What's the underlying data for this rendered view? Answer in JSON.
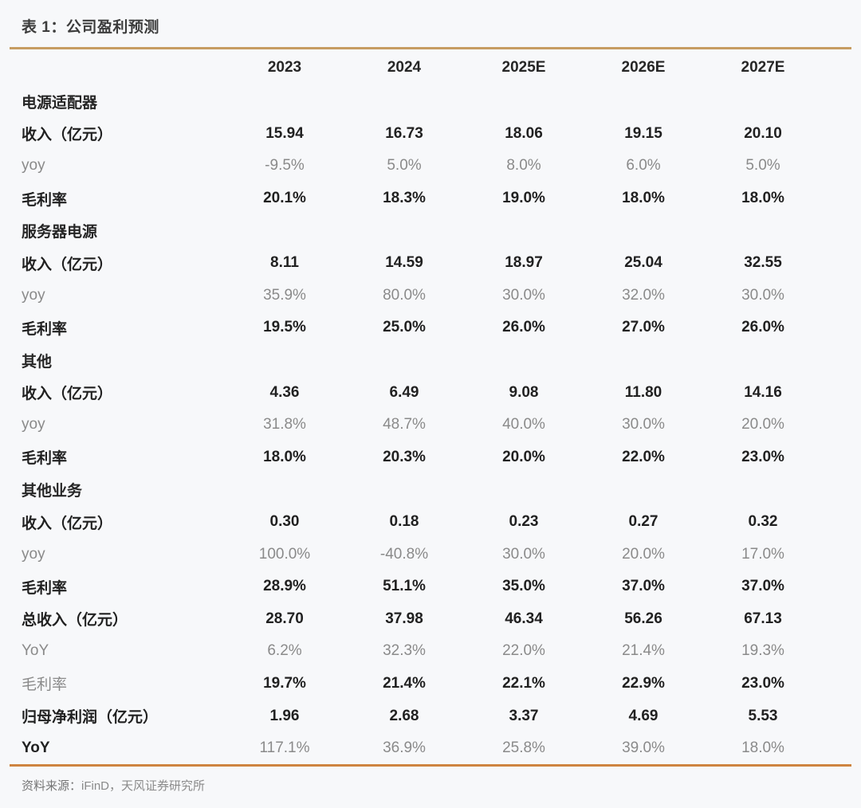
{
  "page": {
    "background": "#F7F8FA",
    "accent_top_rule": "#C69C62",
    "accent_bottom_rule": "#CE8440"
  },
  "table": {
    "title": "表 1：公司盈利预测",
    "columns": [
      "",
      "2023",
      "2024",
      "2025E",
      "2026E",
      "2027E"
    ],
    "rows": [
      {
        "label": "电源适配器",
        "style": "section",
        "values": [
          "",
          "",
          "",
          "",
          ""
        ]
      },
      {
        "label": "收入（亿元）",
        "style": "bold",
        "values": [
          "15.94",
          "16.73",
          "18.06",
          "19.15",
          "20.10"
        ]
      },
      {
        "label": "yoy",
        "style": "gray",
        "values": [
          "-9.5%",
          "5.0%",
          "8.0%",
          "6.0%",
          "5.0%"
        ]
      },
      {
        "label": "毛利率",
        "style": "bold",
        "values": [
          "20.1%",
          "18.3%",
          "19.0%",
          "18.0%",
          "18.0%"
        ]
      },
      {
        "label": "服务器电源",
        "style": "section",
        "values": [
          "",
          "",
          "",
          "",
          ""
        ]
      },
      {
        "label": "收入（亿元）",
        "style": "bold",
        "values": [
          "8.11",
          "14.59",
          "18.97",
          "25.04",
          "32.55"
        ]
      },
      {
        "label": "yoy",
        "style": "gray",
        "values": [
          "35.9%",
          "80.0%",
          "30.0%",
          "32.0%",
          "30.0%"
        ]
      },
      {
        "label": "毛利率",
        "style": "bold",
        "values": [
          "19.5%",
          "25.0%",
          "26.0%",
          "27.0%",
          "26.0%"
        ]
      },
      {
        "label": "其他",
        "style": "section",
        "values": [
          "",
          "",
          "",
          "",
          ""
        ]
      },
      {
        "label": "收入（亿元）",
        "style": "bold",
        "values": [
          "4.36",
          "6.49",
          "9.08",
          "11.80",
          "14.16"
        ]
      },
      {
        "label": "yoy",
        "style": "gray",
        "values": [
          "31.8%",
          "48.7%",
          "40.0%",
          "30.0%",
          "20.0%"
        ]
      },
      {
        "label": "毛利率",
        "style": "bold",
        "values": [
          "18.0%",
          "20.3%",
          "20.0%",
          "22.0%",
          "23.0%"
        ]
      },
      {
        "label": "其他业务",
        "style": "section",
        "values": [
          "",
          "",
          "",
          "",
          ""
        ]
      },
      {
        "label": "收入（亿元）",
        "style": "bold",
        "values": [
          "0.30",
          "0.18",
          "0.23",
          "0.27",
          "0.32"
        ]
      },
      {
        "label": "yoy",
        "style": "gray",
        "values": [
          "100.0%",
          "-40.8%",
          "30.0%",
          "20.0%",
          "17.0%"
        ]
      },
      {
        "label": "毛利率",
        "style": "bold",
        "values": [
          "28.9%",
          "51.1%",
          "35.0%",
          "37.0%",
          "37.0%"
        ]
      },
      {
        "label": "总收入（亿元）",
        "style": "bold",
        "values": [
          "28.70",
          "37.98",
          "46.34",
          "56.26",
          "67.13"
        ]
      },
      {
        "label": "YoY",
        "style": "gray",
        "values": [
          "6.2%",
          "32.3%",
          "22.0%",
          "21.4%",
          "19.3%"
        ]
      },
      {
        "label": "毛利率",
        "style": "graylabel",
        "values": [
          "19.7%",
          "21.4%",
          "22.1%",
          "22.9%",
          "23.0%"
        ]
      },
      {
        "label": "归母净利润（亿元）",
        "style": "bold",
        "values": [
          "1.96",
          "2.68",
          "3.37",
          "4.69",
          "5.53"
        ]
      },
      {
        "label": "YoY",
        "style": "grayvalues",
        "values": [
          "117.1%",
          "36.9%",
          "25.8%",
          "39.0%",
          "18.0%"
        ]
      }
    ],
    "source_prefix": "资料来源：",
    "source_text": "iFinD，天风证券研究所"
  },
  "chart_data": {
    "type": "table",
    "title": "表 1：公司盈利预测",
    "columns": [
      "2023",
      "2024",
      "2025E",
      "2026E",
      "2027E"
    ],
    "sections": [
      {
        "name": "电源适配器",
        "收入（亿元）": [
          15.94,
          16.73,
          18.06,
          19.15,
          20.1
        ],
        "yoy": [
          "-9.5%",
          "5.0%",
          "8.0%",
          "6.0%",
          "5.0%"
        ],
        "毛利率": [
          "20.1%",
          "18.3%",
          "19.0%",
          "18.0%",
          "18.0%"
        ]
      },
      {
        "name": "服务器电源",
        "收入（亿元）": [
          8.11,
          14.59,
          18.97,
          25.04,
          32.55
        ],
        "yoy": [
          "35.9%",
          "80.0%",
          "30.0%",
          "32.0%",
          "30.0%"
        ],
        "毛利率": [
          "19.5%",
          "25.0%",
          "26.0%",
          "27.0%",
          "26.0%"
        ]
      },
      {
        "name": "其他",
        "收入（亿元）": [
          4.36,
          6.49,
          9.08,
          11.8,
          14.16
        ],
        "yoy": [
          "31.8%",
          "48.7%",
          "40.0%",
          "30.0%",
          "20.0%"
        ],
        "毛利率": [
          "18.0%",
          "20.3%",
          "20.0%",
          "22.0%",
          "23.0%"
        ]
      },
      {
        "name": "其他业务",
        "收入（亿元）": [
          0.3,
          0.18,
          0.23,
          0.27,
          0.32
        ],
        "yoy": [
          "100.0%",
          "-40.8%",
          "30.0%",
          "20.0%",
          "17.0%"
        ],
        "毛利率": [
          "28.9%",
          "51.1%",
          "35.0%",
          "37.0%",
          "37.0%"
        ]
      }
    ],
    "totals": {
      "总收入（亿元）": [
        28.7,
        37.98,
        46.34,
        56.26,
        67.13
      ],
      "YoY": [
        "6.2%",
        "32.3%",
        "22.0%",
        "21.4%",
        "19.3%"
      ],
      "毛利率": [
        "19.7%",
        "21.4%",
        "22.1%",
        "22.9%",
        "23.0%"
      ],
      "归母净利润（亿元）": [
        1.96,
        2.68,
        3.37,
        4.69,
        5.53
      ],
      "归母净利润YoY": [
        "117.1%",
        "36.9%",
        "25.8%",
        "39.0%",
        "18.0%"
      ]
    },
    "source": "资料来源：iFinD，天风证券研究所"
  }
}
